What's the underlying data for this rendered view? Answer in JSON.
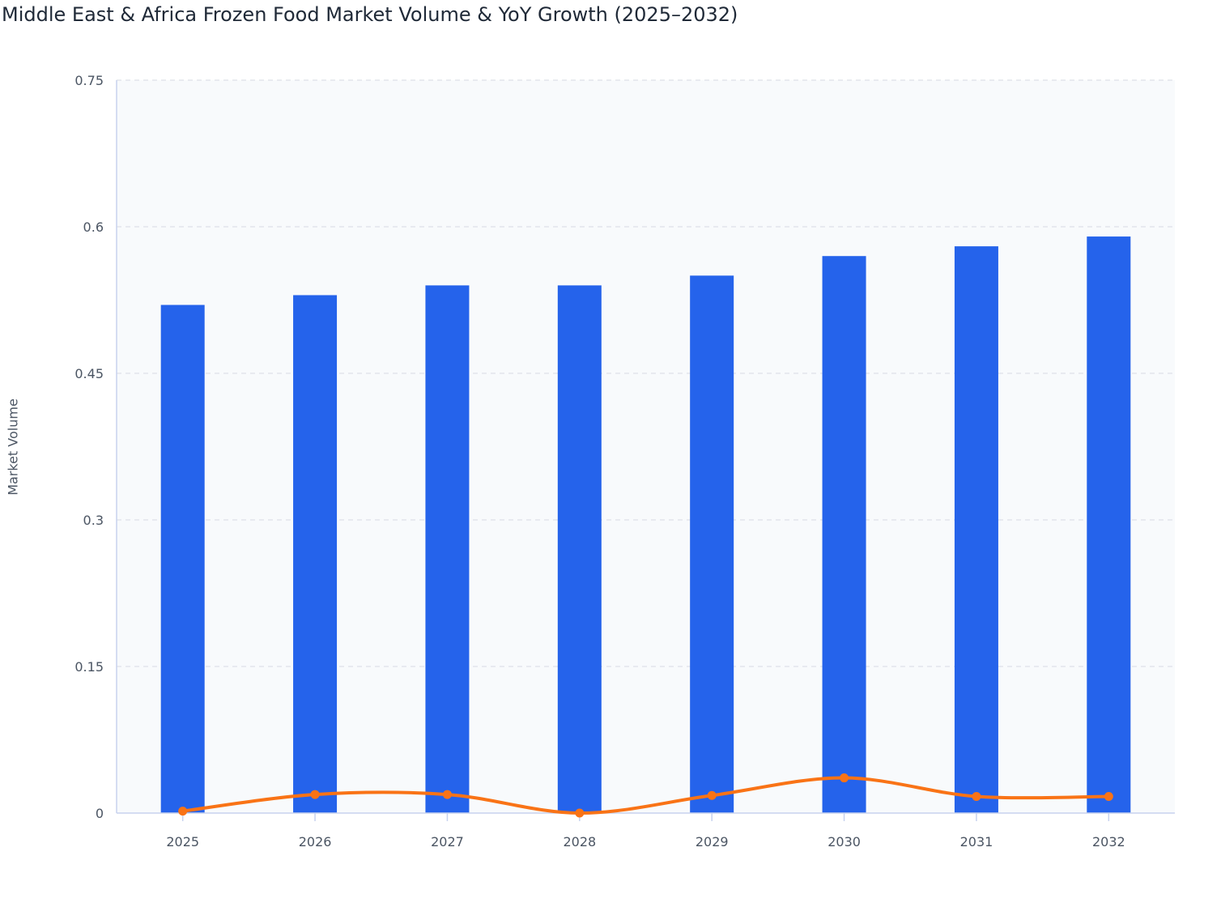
{
  "chart_data": {
    "type": "bar",
    "title": "Middle East & Africa Frozen Food Market Volume & YoY Growth (2025–2032)",
    "xlabel": "",
    "ylabel": "Market Volume",
    "ylim": [
      0,
      0.75
    ],
    "yticks": [
      "0",
      "0.15",
      "0.3",
      "0.45",
      "0.6",
      "0.75"
    ],
    "ytick_values": [
      0,
      0.15,
      0.3,
      0.45,
      0.6,
      0.75
    ],
    "grid": true,
    "categories": [
      "2025",
      "2026",
      "2027",
      "2028",
      "2029",
      "2030",
      "2031",
      "2032"
    ],
    "series": [
      {
        "type": "bar",
        "color": "#2563eb",
        "values": [
          0.52,
          0.53,
          0.54,
          0.54,
          0.55,
          0.57,
          0.58,
          0.59
        ]
      },
      {
        "type": "line",
        "smooth": true,
        "color": "#f97316",
        "values": [
          0.002,
          0.019,
          0.019,
          0,
          0.018,
          0.036,
          0.017,
          0.017
        ]
      }
    ]
  }
}
